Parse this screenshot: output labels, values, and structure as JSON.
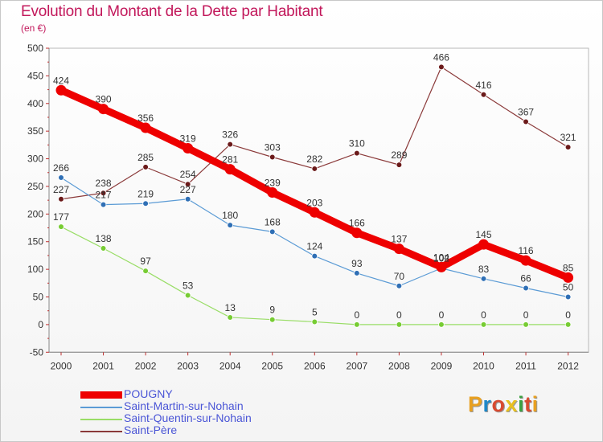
{
  "chart_data": {
    "type": "line",
    "title": "Evolution du Montant de la Dette par Habitant",
    "subtitle": "(en €)",
    "xlabel": "",
    "ylabel": "",
    "categories": [
      "2000",
      "2001",
      "2002",
      "2003",
      "2004",
      "2005",
      "2006",
      "2007",
      "2008",
      "2009",
      "2010",
      "2011",
      "2012"
    ],
    "ylim": [
      -50,
      500
    ],
    "yticks": [
      -50,
      0,
      50,
      100,
      150,
      200,
      250,
      300,
      350,
      400,
      450,
      500
    ],
    "grid": false,
    "legend_position": "bottom-left",
    "series": [
      {
        "name": "POUGNY",
        "values": [
          424,
          390,
          356,
          319,
          281,
          239,
          203,
          166,
          137,
          104,
          145,
          116,
          85
        ],
        "color": "#ee0000",
        "thick": true
      },
      {
        "name": "Saint-Martin-sur-Nohain",
        "values": [
          266,
          217,
          219,
          227,
          180,
          168,
          124,
          93,
          70,
          102,
          83,
          66,
          50
        ],
        "color": "#5b9bd5",
        "marker": "#2f6fb5"
      },
      {
        "name": "Saint-Quentin-sur-Nohain",
        "values": [
          177,
          138,
          97,
          53,
          13,
          9,
          5,
          0,
          0,
          0,
          0,
          0,
          0
        ],
        "color": "#99dd66",
        "marker": "#77cc33"
      },
      {
        "name": "Saint-Père",
        "values": [
          227,
          238,
          285,
          254,
          326,
          303,
          282,
          310,
          289,
          466,
          416,
          367,
          321
        ],
        "color": "#8b3a3a",
        "marker": "#6b1a1a"
      }
    ]
  },
  "branding": {
    "logo_text": "Proxiti",
    "letter_colors": [
      "#e8a020",
      "#1e88c8",
      "#d84a30",
      "#e8c020",
      "#3aa040",
      "#d84a30",
      "#e8a020"
    ]
  }
}
